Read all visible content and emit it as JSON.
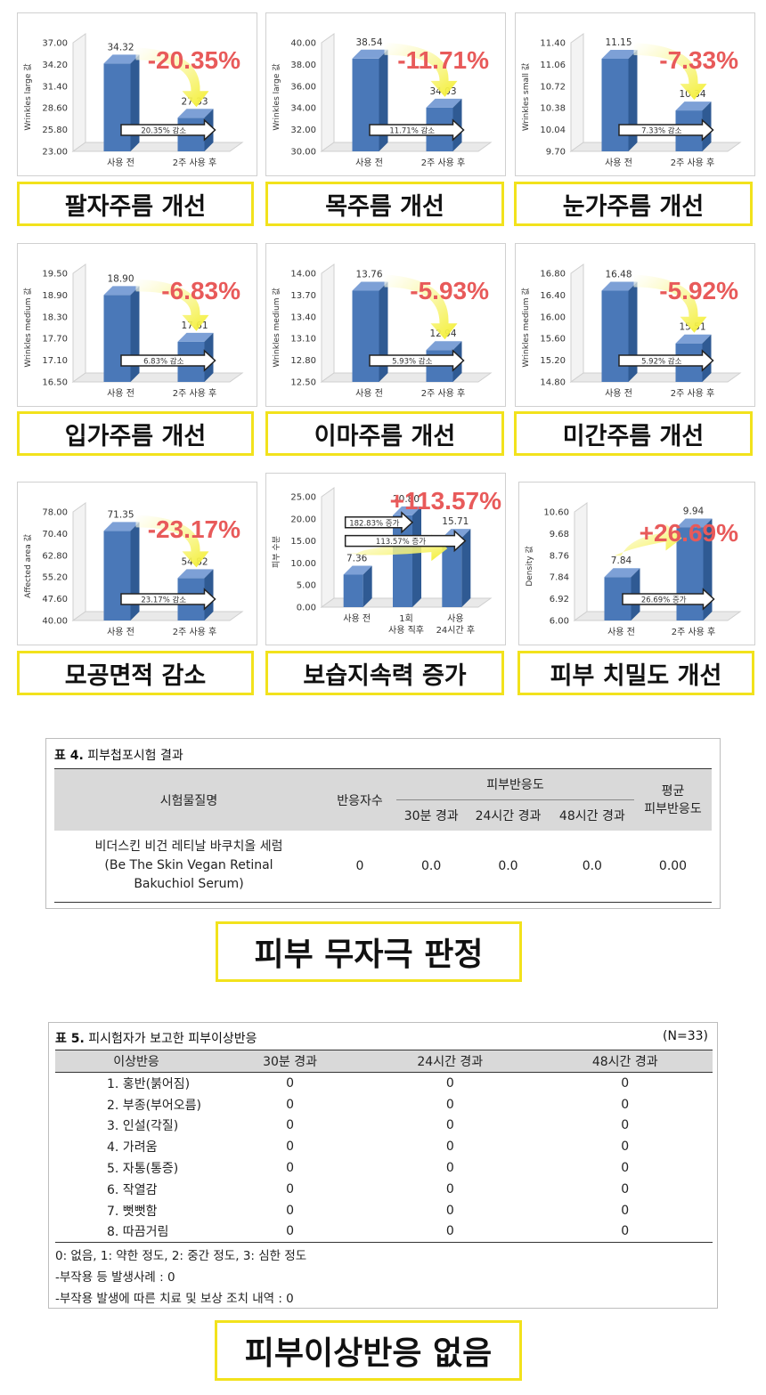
{
  "chart_data": [
    {
      "type": "bar",
      "categories": [
        "사용 전",
        "2주 사용 후"
      ],
      "values": [
        34.32,
        27.33
      ],
      "ylabel": "Wrinkles large 값",
      "yticks": [
        "37.00",
        "34.20",
        "31.40",
        "28.60",
        "25.80",
        "23.00"
      ],
      "ylim": [
        23,
        37
      ],
      "change": "-20.35%",
      "arrow_label": "20.35% 감소",
      "caption": "팔자주름 개선"
    },
    {
      "type": "bar",
      "categories": [
        "사용 전",
        "2주 사용 후"
      ],
      "values": [
        38.54,
        34.03
      ],
      "ylabel": "Wrinkles large 값",
      "yticks": [
        "40.00",
        "38.00",
        "36.00",
        "34.00",
        "32.00",
        "30.00"
      ],
      "ylim": [
        30,
        40
      ],
      "change": "-11.71%",
      "arrow_label": "11.71% 감소",
      "caption": "목주름 개선"
    },
    {
      "type": "bar",
      "categories": [
        "사용 전",
        "2주 사용 후"
      ],
      "values": [
        11.15,
        10.34
      ],
      "ylabel": "Wrinkles small 값",
      "yticks": [
        "11.40",
        "11.06",
        "10.72",
        "10.38",
        "10.04",
        "9.70"
      ],
      "ylim": [
        9.7,
        11.4
      ],
      "change": "-7.33%",
      "arrow_label": "7.33% 감소",
      "caption": "눈가주름 개선"
    },
    {
      "type": "bar",
      "categories": [
        "사용 전",
        "2주 사용 후"
      ],
      "values": [
        18.9,
        17.61
      ],
      "ylabel": "Wrinkles medium 값",
      "yticks": [
        "19.50",
        "18.90",
        "18.30",
        "17.70",
        "17.10",
        "16.50"
      ],
      "ylim": [
        16.5,
        19.5
      ],
      "change": "-6.83%",
      "arrow_label": "6.83% 감소",
      "caption": "입가주름 개선"
    },
    {
      "type": "bar",
      "categories": [
        "사용 전",
        "2주 사용 후"
      ],
      "values": [
        13.76,
        12.94
      ],
      "ylabel": "Wrinkles medium 값",
      "yticks": [
        "14.00",
        "13.70",
        "13.40",
        "13.10",
        "12.80",
        "12.50"
      ],
      "ylim": [
        12.5,
        14.0
      ],
      "change": "-5.93%",
      "arrow_label": "5.93% 감소",
      "caption": "이마주름 개선"
    },
    {
      "type": "bar",
      "categories": [
        "사용 전",
        "2주 사용 후"
      ],
      "values": [
        16.48,
        15.51
      ],
      "ylabel": "Wrinkles medium 값",
      "yticks": [
        "16.80",
        "16.40",
        "16.00",
        "15.60",
        "15.20",
        "14.80"
      ],
      "ylim": [
        14.8,
        16.8
      ],
      "change": "-5.92%",
      "arrow_label": "5.92% 감소",
      "caption": "미간주름 개선"
    },
    {
      "type": "bar",
      "categories": [
        "사용 전",
        "2주 사용 후"
      ],
      "values": [
        71.35,
        54.82
      ],
      "ylabel": "Affected area 값",
      "yticks": [
        "78.00",
        "70.40",
        "62.80",
        "55.20",
        "47.60",
        "40.00"
      ],
      "ylim": [
        40,
        78
      ],
      "change": "-23.17%",
      "arrow_label": "23.17% 감소",
      "caption": "모공면적 감소"
    },
    {
      "type": "bar",
      "categories": [
        "사용 전",
        "1회\n사용 직후",
        "사용\n24시간 후"
      ],
      "values": [
        7.36,
        20.8,
        15.71
      ],
      "ylabel": "피부 수분",
      "yticks": [
        "25.00",
        "20.00",
        "15.00",
        "10.00",
        "5.00",
        "0.00"
      ],
      "ylim": [
        0,
        25
      ],
      "change": "+113.57%",
      "arrow_label": "182.83% 증가",
      "arrow_label2": "113.57% 증가",
      "caption": "보습지속력 증가"
    },
    {
      "type": "bar",
      "categories": [
        "사용 전",
        "2주 사용 후"
      ],
      "values": [
        7.84,
        9.94
      ],
      "ylabel": "Density 값",
      "yticks": [
        "10.60",
        "9.68",
        "8.76",
        "7.84",
        "6.92",
        "6.00"
      ],
      "ylim": [
        6,
        10.6
      ],
      "change": "+26.69%",
      "arrow_label": "26.69% 증가",
      "caption": "피부 치밀도 개선"
    }
  ],
  "table4": {
    "title_bold": "표 4.",
    "title": "피부첩포시험 결과",
    "col_name": "시험물질명",
    "col_count": "반응자수",
    "col_group": "피부반응도",
    "col_30": "30분 경과",
    "col_24": "24시간 경과",
    "col_48": "48시간 경과",
    "col_avg": "평균\n피부반응도",
    "row_name": "비더스킨 비건 레티날 바쿠치올 세럼\n(Be The Skin Vegan Retinal\nBakuchiol Serum)",
    "row_count": "0",
    "row_30": "0.0",
    "row_24": "0.0",
    "row_48": "0.0",
    "row_avg": "0.00"
  },
  "caption_table4": "피부 무자극 판정",
  "table5": {
    "title_bold": "표 5.",
    "title": "피시험자가 보고한 피부이상반응",
    "n": "(N=33)",
    "headers": [
      "이상반응",
      "30분 경과",
      "24시간 경과",
      "48시간 경과"
    ],
    "rows": [
      [
        "1. 홍반(붉어짐)",
        "0",
        "0",
        "0"
      ],
      [
        "2. 부종(부어오름)",
        "0",
        "0",
        "0"
      ],
      [
        "3. 인설(각질)",
        "0",
        "0",
        "0"
      ],
      [
        "4. 가려움",
        "0",
        "0",
        "0"
      ],
      [
        "5. 자통(통증)",
        "0",
        "0",
        "0"
      ],
      [
        "6. 작열감",
        "0",
        "0",
        "0"
      ],
      [
        "7. 뻣뻣함",
        "0",
        "0",
        "0"
      ],
      [
        "8. 따끔거림",
        "0",
        "0",
        "0"
      ]
    ],
    "notes": [
      "0: 없음, 1: 약한 정도, 2: 중간 정도, 3: 심한 정도",
      "-부작용 등 발생사례 : 0",
      "-부작용 발생에 따른 치료 및 보상 조치 내역 : 0"
    ]
  },
  "caption_table5": "피부이상반응 없음",
  "colors": {
    "bar": "#4a78b8",
    "bar_top": "#7da0d6",
    "bar_side": "#2f5a93",
    "change": "#e85a5a",
    "caption_border": "#f2e21c",
    "arrow": "#f3ee2a"
  }
}
